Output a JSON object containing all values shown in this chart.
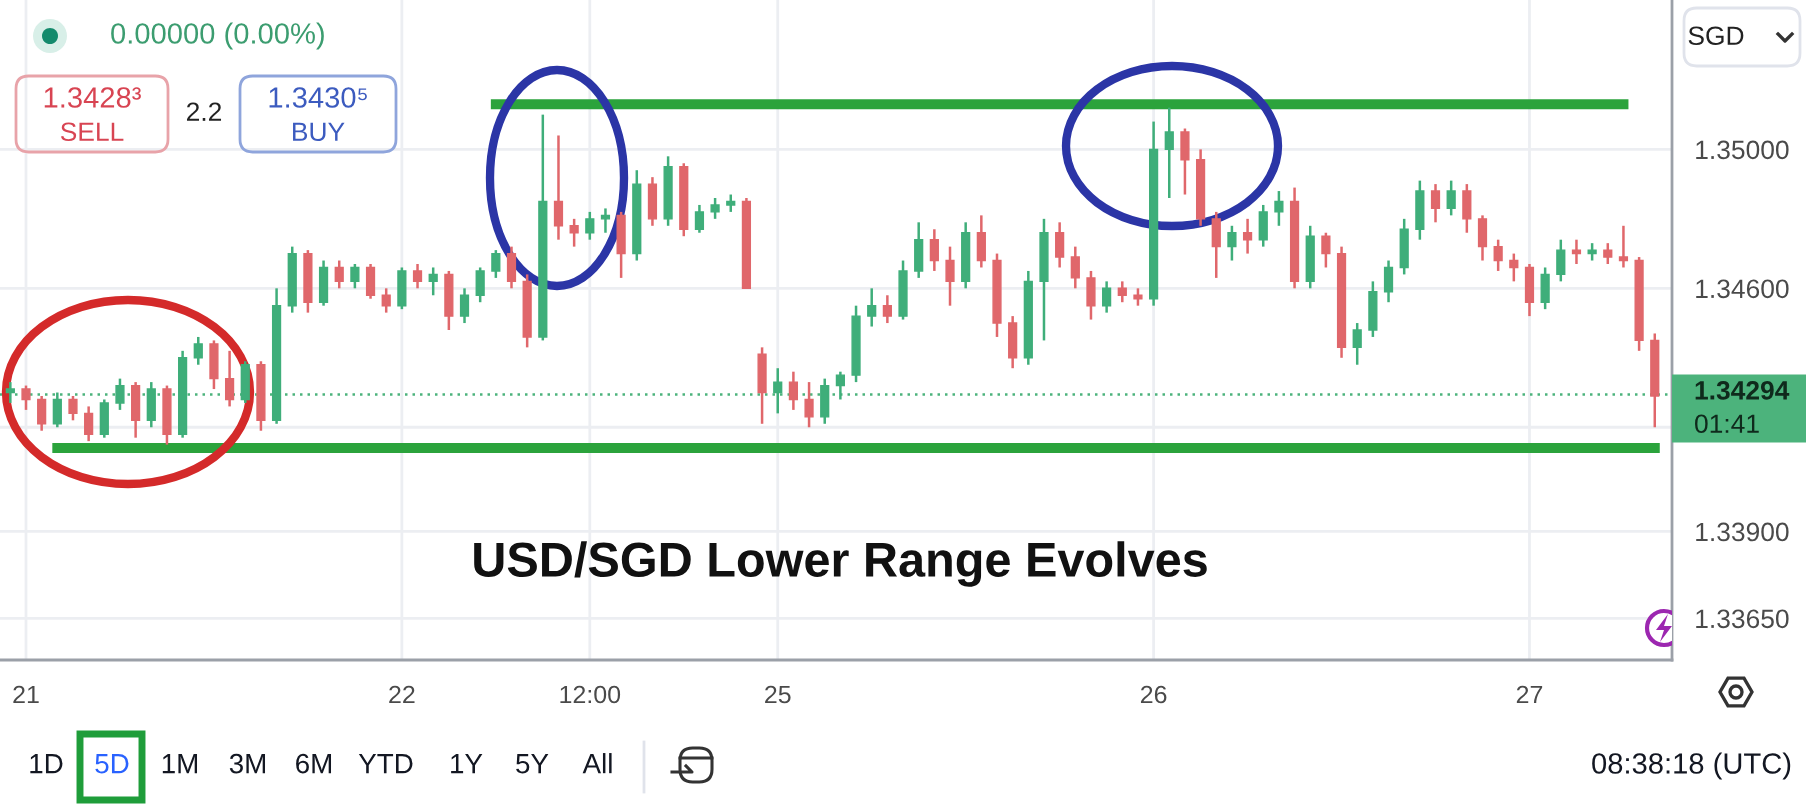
{
  "chart_data": {
    "type": "candlestick",
    "title": "USD/SGD Lower Range Evolves",
    "categories": [
      null,
      "21",
      null,
      null,
      null,
      null,
      null,
      null,
      null,
      null,
      null,
      null,
      null,
      null,
      null,
      null,
      null,
      null,
      null,
      null,
      null,
      null,
      null,
      null,
      null,
      "22",
      null,
      null,
      null,
      null,
      null,
      null,
      null,
      null,
      null,
      null,
      null,
      "12:00",
      null,
      null,
      null,
      null,
      null,
      null,
      null,
      null,
      null,
      null,
      null,
      "25",
      null,
      null,
      null,
      null,
      null,
      null,
      null,
      null,
      null,
      null,
      null,
      null,
      null,
      null,
      null,
      null,
      null,
      null,
      null,
      null,
      null,
      null,
      null,
      "26",
      null,
      null,
      null,
      null,
      null,
      null,
      null,
      null,
      null,
      null,
      null,
      null,
      null,
      null,
      null,
      null,
      null,
      null,
      null,
      null,
      null,
      null,
      null,
      "27",
      null,
      null,
      null,
      null,
      null,
      null,
      null,
      null
    ],
    "ohlc": [
      [
        1.343,
        1.3433,
        1.3427,
        1.3431
      ],
      [
        1.3431,
        1.3432,
        1.3425,
        1.3428
      ],
      [
        1.3428,
        1.3429,
        1.3419,
        1.3421
      ],
      [
        1.3421,
        1.343,
        1.342,
        1.3428
      ],
      [
        1.3428,
        1.3429,
        1.3422,
        1.3424
      ],
      [
        1.3424,
        1.3426,
        1.3416,
        1.3418
      ],
      [
        1.3418,
        1.3428,
        1.3417,
        1.3427
      ],
      [
        1.3427,
        1.3434,
        1.3425,
        1.3432
      ],
      [
        1.3432,
        1.3433,
        1.3417,
        1.3422
      ],
      [
        1.3422,
        1.3433,
        1.342,
        1.3431
      ],
      [
        1.3431,
        1.3432,
        1.3415,
        1.3418
      ],
      [
        1.3418,
        1.3442,
        1.3417,
        1.344
      ],
      [
        1.344,
        1.3446,
        1.3438,
        1.3444
      ],
      [
        1.3444,
        1.3445,
        1.3431,
        1.3434
      ],
      [
        1.3434,
        1.3442,
        1.3426,
        1.3428
      ],
      [
        1.3428,
        1.3439,
        1.3427,
        1.3438
      ],
      [
        1.3438,
        1.3439,
        1.3419,
        1.3422
      ],
      [
        1.3422,
        1.346,
        1.3421,
        1.3455
      ],
      [
        1.3455,
        1.3472,
        1.3453,
        1.347
      ],
      [
        1.347,
        1.3471,
        1.3453,
        1.3456
      ],
      [
        1.3456,
        1.3468,
        1.3455,
        1.3466
      ],
      [
        1.3466,
        1.3468,
        1.346,
        1.3462
      ],
      [
        1.3462,
        1.3467,
        1.346,
        1.3466
      ],
      [
        1.3466,
        1.3467,
        1.3457,
        1.3458
      ],
      [
        1.3458,
        1.346,
        1.3453,
        1.3455
      ],
      [
        1.3455,
        1.3466,
        1.3454,
        1.3465
      ],
      [
        1.3465,
        1.3467,
        1.346,
        1.3462
      ],
      [
        1.3462,
        1.3466,
        1.3458,
        1.3464
      ],
      [
        1.3464,
        1.3465,
        1.3448,
        1.3452
      ],
      [
        1.3452,
        1.346,
        1.345,
        1.3458
      ],
      [
        1.3458,
        1.3466,
        1.3456,
        1.3465
      ],
      [
        1.3465,
        1.3471,
        1.3463,
        1.347
      ],
      [
        1.347,
        1.3472,
        1.346,
        1.3462
      ],
      [
        1.3462,
        1.3464,
        1.3443,
        1.3446
      ],
      [
        1.3446,
        1.351,
        1.3445,
        1.3485
      ],
      [
        1.3485,
        1.3504,
        1.3474,
        1.3478
      ],
      [
        1.3478,
        1.348,
        1.3472,
        1.3476
      ],
      [
        1.3476,
        1.3482,
        1.3474,
        1.348
      ],
      [
        1.348,
        1.3483,
        1.3476,
        1.3481
      ],
      [
        1.3481,
        1.3482,
        1.3463,
        1.347
      ],
      [
        1.347,
        1.3494,
        1.3468,
        1.349
      ],
      [
        1.349,
        1.3492,
        1.3478,
        1.348
      ],
      [
        1.348,
        1.3498,
        1.3478,
        1.3495
      ],
      [
        1.3495,
        1.3496,
        1.3475,
        1.3477
      ],
      [
        1.3477,
        1.3484,
        1.3476,
        1.3482
      ],
      [
        1.3482,
        1.3486,
        1.348,
        1.3484
      ],
      [
        1.3484,
        1.3487,
        1.3482,
        1.3485
      ],
      [
        1.3485,
        1.3486,
        1.346,
        1.346
      ],
      [
        1.3441,
        1.3443,
        1.3421,
        1.343
      ],
      [
        1.343,
        1.3437,
        1.3424,
        1.3433
      ],
      [
        1.3433,
        1.3436,
        1.3425,
        1.3428
      ],
      [
        1.3428,
        1.3433,
        1.342,
        1.3423
      ],
      [
        1.3423,
        1.3434,
        1.3421,
        1.3432
      ],
      [
        1.3432,
        1.3436,
        1.3428,
        1.3435
      ],
      [
        1.3435,
        1.3455,
        1.3433,
        1.3452
      ],
      [
        1.3452,
        1.346,
        1.3449,
        1.3455
      ],
      [
        1.3455,
        1.3458,
        1.345,
        1.3452
      ],
      [
        1.3452,
        1.3468,
        1.3451,
        1.3465
      ],
      [
        1.3465,
        1.3479,
        1.3463,
        1.3474
      ],
      [
        1.3474,
        1.3477,
        1.3465,
        1.3468
      ],
      [
        1.3468,
        1.3472,
        1.3455,
        1.3462
      ],
      [
        1.3462,
        1.3479,
        1.346,
        1.3476
      ],
      [
        1.3476,
        1.3481,
        1.3466,
        1.3468
      ],
      [
        1.3468,
        1.347,
        1.3446,
        1.345
      ],
      [
        1.345,
        1.3452,
        1.3437,
        1.344
      ],
      [
        1.344,
        1.3465,
        1.3438,
        1.3462
      ],
      [
        1.3462,
        1.348,
        1.3445,
        1.3476
      ],
      [
        1.3476,
        1.3479,
        1.3466,
        1.3469
      ],
      [
        1.3469,
        1.3472,
        1.346,
        1.3463
      ],
      [
        1.3463,
        1.3465,
        1.3451,
        1.3455
      ],
      [
        1.3455,
        1.3462,
        1.3453,
        1.346
      ],
      [
        1.346,
        1.3462,
        1.3456,
        1.3458
      ],
      [
        1.3458,
        1.346,
        1.3455,
        1.3457
      ],
      [
        1.3457,
        1.3508,
        1.3455,
        1.35
      ],
      [
        1.35,
        1.3512,
        1.3486,
        1.3505
      ],
      [
        1.3505,
        1.3506,
        1.3487,
        1.3497
      ],
      [
        1.3497,
        1.35,
        1.3478,
        1.348
      ],
      [
        1.348,
        1.3482,
        1.3463,
        1.3472
      ],
      [
        1.3472,
        1.3478,
        1.3468,
        1.3476
      ],
      [
        1.3476,
        1.348,
        1.347,
        1.3474
      ],
      [
        1.3474,
        1.3484,
        1.3472,
        1.3482
      ],
      [
        1.3482,
        1.3488,
        1.3478,
        1.3485
      ],
      [
        1.3485,
        1.3489,
        1.346,
        1.3462
      ],
      [
        1.3462,
        1.3478,
        1.346,
        1.3475
      ],
      [
        1.3475,
        1.3476,
        1.3466,
        1.347
      ],
      [
        1.347,
        1.3472,
        1.344,
        1.3443
      ],
      [
        1.3443,
        1.345,
        1.3438,
        1.3448
      ],
      [
        1.3448,
        1.3462,
        1.3446,
        1.3459
      ],
      [
        1.3459,
        1.3468,
        1.3456,
        1.3466
      ],
      [
        1.3466,
        1.348,
        1.3464,
        1.3477
      ],
      [
        1.3477,
        1.3491,
        1.3474,
        1.3488
      ],
      [
        1.3488,
        1.349,
        1.3479,
        1.3483
      ],
      [
        1.3483,
        1.3491,
        1.3481,
        1.3488
      ],
      [
        1.3488,
        1.349,
        1.3476,
        1.348
      ],
      [
        1.348,
        1.3481,
        1.3468,
        1.3472
      ],
      [
        1.3472,
        1.3474,
        1.3465,
        1.3468
      ],
      [
        1.3468,
        1.347,
        1.3462,
        1.3466
      ],
      [
        1.3466,
        1.3467,
        1.3452,
        1.3456
      ],
      [
        1.3456,
        1.3466,
        1.3454,
        1.3464
      ],
      [
        1.3464,
        1.3474,
        1.3462,
        1.3471
      ],
      [
        1.3471,
        1.3474,
        1.3467,
        1.347
      ],
      [
        1.347,
        1.3473,
        1.3468,
        1.3471
      ],
      [
        1.3471,
        1.3473,
        1.3467,
        1.3469
      ],
      [
        1.3469,
        1.3478,
        1.3466,
        1.3468
      ],
      [
        1.3468,
        1.3469,
        1.3442,
        1.3445
      ],
      [
        1.3445,
        1.3447,
        1.342,
        1.3429
      ]
    ],
    "colors": [
      "#3fae7a",
      "#e0676b",
      "#e0676b",
      "#3fae7a",
      "#e0676b",
      "#e0676b",
      "#3fae7a",
      "#3fae7a",
      "#e0676b",
      "#3fae7a",
      "#e0676b",
      "#3fae7a",
      "#3fae7a",
      "#e0676b",
      "#e0676b",
      "#3fae7a",
      "#e0676b",
      "#3fae7a",
      "#3fae7a",
      "#e0676b",
      "#3fae7a",
      "#e0676b",
      "#3fae7a",
      "#e0676b",
      "#e0676b",
      "#3fae7a",
      "#e0676b",
      "#3fae7a",
      "#e0676b",
      "#3fae7a",
      "#3fae7a",
      "#3fae7a",
      "#e0676b",
      "#e0676b",
      "#3fae7a",
      "#e0676b",
      "#e0676b",
      "#3fae7a",
      "#3fae7a",
      "#e0676b",
      "#3fae7a",
      "#e0676b",
      "#3fae7a",
      "#e0676b",
      "#3fae7a",
      "#3fae7a",
      "#3fae7a",
      "#e0676b",
      "#e0676b",
      "#3fae7a",
      "#e0676b",
      "#e0676b",
      "#3fae7a",
      "#3fae7a",
      "#3fae7a",
      "#3fae7a",
      "#e0676b",
      "#3fae7a",
      "#3fae7a",
      "#e0676b",
      "#e0676b",
      "#3fae7a",
      "#e0676b",
      "#e0676b",
      "#e0676b",
      "#3fae7a",
      "#3fae7a",
      "#e0676b",
      "#e0676b",
      "#e0676b",
      "#3fae7a",
      "#e0676b",
      "#e0676b",
      "#3fae7a",
      "#3fae7a",
      "#e0676b",
      "#e0676b",
      "#e0676b",
      "#3fae7a",
      "#e0676b",
      "#3fae7a",
      "#3fae7a",
      "#e0676b",
      "#3fae7a",
      "#e0676b",
      "#e0676b",
      "#3fae7a",
      "#3fae7a",
      "#3fae7a",
      "#3fae7a",
      "#3fae7a",
      "#e0676b",
      "#3fae7a",
      "#e0676b",
      "#e0676b",
      "#e0676b",
      "#e0676b",
      "#e0676b",
      "#3fae7a",
      "#3fae7a",
      "#e0676b",
      "#3fae7a",
      "#e0676b",
      "#e0676b",
      "#e0676b",
      "#e0676b"
    ],
    "series": [
      {
        "type": "line",
        "color": "#2ba33c",
        "values": [
          null,
          null,
          null,
          null,
          null,
          null,
          null,
          null,
          null,
          null,
          null,
          null,
          null,
          null,
          null,
          null,
          null,
          null,
          null,
          null,
          null,
          null,
          null,
          null,
          null,
          null,
          null,
          null,
          null,
          null,
          null,
          1.3513,
          1.3513,
          1.3513,
          1.3513,
          1.3513,
          1.3513,
          1.3513,
          1.3513,
          1.3513,
          1.3513,
          1.3513,
          1.3513,
          1.3513,
          1.3513,
          1.3513,
          1.3513,
          1.3513,
          1.3513,
          1.3513,
          1.3513,
          1.3513,
          1.3513,
          1.3513,
          1.3513,
          1.3513,
          1.3513,
          1.3513,
          1.3513,
          1.3513,
          1.3513,
          1.3513,
          1.3513,
          1.3513,
          1.3513,
          1.3513,
          1.3513,
          1.3513,
          1.3513,
          1.3513,
          1.3513,
          1.3513,
          1.3513,
          1.3513,
          1.3513,
          1.3513,
          1.3513,
          1.3513,
          1.3513,
          1.3513,
          1.3513,
          1.3513,
          1.3513,
          1.3513,
          1.3513,
          1.3513,
          1.3513,
          1.3513,
          1.3513,
          1.3513,
          1.3513,
          1.3513,
          1.3513,
          1.3513,
          1.3513,
          1.3513,
          1.3513,
          1.3513,
          1.3513,
          1.3513,
          1.3513,
          1.3513,
          1.3513,
          1.3513,
          null,
          null
        ]
      },
      {
        "type": "line",
        "color": "#2ba33c",
        "values": [
          null,
          null,
          null,
          1.3414,
          1.3414,
          1.3414,
          1.3414,
          1.3414,
          1.3414,
          1.3414,
          1.3414,
          1.3414,
          1.3414,
          1.3414,
          1.3414,
          1.3414,
          1.3414,
          1.3414,
          1.3414,
          1.3414,
          1.3414,
          1.3414,
          1.3414,
          1.3414,
          1.3414,
          1.3414,
          1.3414,
          1.3414,
          1.3414,
          1.3414,
          1.3414,
          1.3414,
          1.3414,
          1.3414,
          1.3414,
          1.3414,
          1.3414,
          1.3414,
          1.3414,
          1.3414,
          1.3414,
          1.3414,
          1.3414,
          1.3414,
          1.3414,
          1.3414,
          1.3414,
          1.3414,
          1.3414,
          1.3414,
          1.3414,
          1.3414,
          1.3414,
          1.3414,
          1.3414,
          1.3414,
          1.3414,
          1.3414,
          1.3414,
          1.3414,
          1.3414,
          1.3414,
          1.3414,
          1.3414,
          1.3414,
          1.3414,
          1.3414,
          1.3414,
          1.3414,
          1.3414,
          1.3414,
          1.3414,
          1.3414,
          1.3414,
          1.3414,
          1.3414,
          1.3414,
          1.3414,
          1.3414,
          1.3414,
          1.3414,
          1.3414,
          1.3414,
          1.3414,
          1.3414,
          1.3414,
          1.3414,
          1.3414,
          1.3414,
          1.3414,
          1.3414,
          1.3414,
          1.3414,
          1.3414,
          1.3414,
          1.3414,
          1.3414,
          1.3414,
          1.3414,
          1.3414,
          1.3414,
          1.3414,
          1.3414,
          1.3414,
          1.3414,
          1.3414
        ]
      }
    ],
    "ref_lines": [
      {
        "axis": "y",
        "value": 1.34294,
        "label": "1.34294",
        "color": "#4cb37c",
        "line_style": "dotted"
      }
    ],
    "ylim": [
      1.3353,
      1.3543
    ],
    "yticks": [
      {
        "value": 1.35,
        "label": "1.35000"
      },
      {
        "value": 1.346,
        "label": "1.34600"
      },
      {
        "value": 1.342,
        "label": null
      },
      {
        "value": 1.339,
        "label": "1.33900"
      },
      {
        "value": 1.3365,
        "label": "1.33650"
      }
    ],
    "grid": true,
    "annotations": [
      "0.00000 (0.00%)",
      "1.3428³",
      "SELL",
      "2.2",
      "1.3430⁵",
      "BUY",
      "SGD",
      "01:41",
      "1D",
      "5D",
      "1M",
      "3M",
      "6M",
      "YTD",
      "1Y",
      "5Y",
      "All",
      "08:38:18 (UTC)"
    ]
  }
}
